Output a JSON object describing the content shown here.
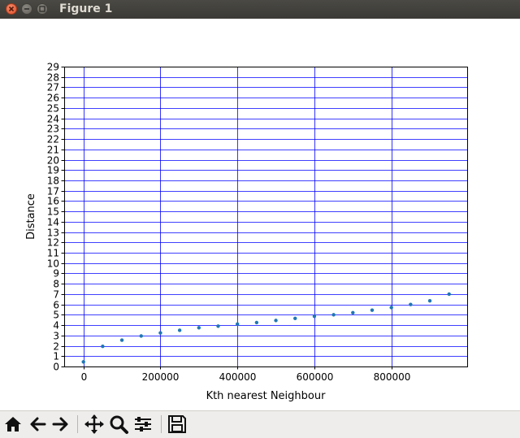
{
  "window": {
    "title": "Figure 1"
  },
  "toolbar": {
    "buttons": [
      {
        "name": "home-icon"
      },
      {
        "name": "back-arrow-icon"
      },
      {
        "name": "forward-arrow-icon"
      },
      {
        "name": "pan-icon"
      },
      {
        "name": "zoom-icon"
      },
      {
        "name": "configure-subplots-icon"
      },
      {
        "name": "save-icon"
      }
    ]
  },
  "chart_data": {
    "type": "scatter",
    "title": "",
    "xlabel": "Kth nearest Neighbour",
    "ylabel": "Distance",
    "xlim": [
      -50000,
      997000
    ],
    "ylim": [
      0,
      29
    ],
    "xticks": [
      0,
      200000,
      400000,
      600000,
      800000
    ],
    "xtick_labels": [
      "0",
      "200000",
      "400000",
      "600000",
      "800000"
    ],
    "yticks": [
      0,
      1,
      2,
      3,
      4,
      5,
      6,
      7,
      8,
      9,
      10,
      11,
      12,
      13,
      14,
      15,
      16,
      17,
      18,
      19,
      20,
      21,
      22,
      23,
      24,
      25,
      26,
      27,
      28,
      29
    ],
    "ytick_labels": [
      "0",
      "1",
      "2",
      "3",
      "4",
      "5",
      "6",
      "7",
      "8",
      "9",
      "10",
      "11",
      "12",
      "13",
      "14",
      "15",
      "16",
      "17",
      "18",
      "19",
      "20",
      "21",
      "22",
      "23",
      "24",
      "25",
      "26",
      "27",
      "28",
      "29"
    ],
    "grid": true,
    "grid_color": "#0000ff",
    "point_color": "#1f77b4",
    "x": [
      0,
      50000,
      100000,
      150000,
      200000,
      250000,
      300000,
      350000,
      400000,
      450000,
      500000,
      550000,
      600000,
      650000,
      700000,
      750000,
      800000,
      850000,
      900000,
      950000
    ],
    "y": [
      0.45,
      1.95,
      2.55,
      2.95,
      3.25,
      3.5,
      3.75,
      3.9,
      4.1,
      4.25,
      4.45,
      4.65,
      4.85,
      5.0,
      5.2,
      5.45,
      5.7,
      6.0,
      6.35,
      7.0
    ]
  }
}
